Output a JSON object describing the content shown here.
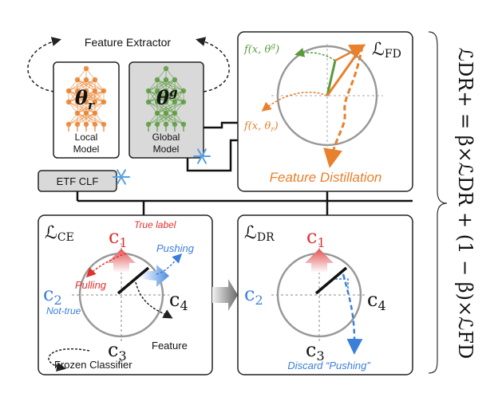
{
  "feature_extractor": {
    "title": "Feature  Extractor",
    "local_symbol": "θ",
    "local_sub": "r",
    "local_line1": "Local",
    "local_line2": "Model",
    "global_symbol": "θ",
    "global_sup": "g",
    "global_line1": "Global",
    "global_line2": "Model"
  },
  "etf_clf": "ETF CLF",
  "fd_panel": {
    "loss": "ℒ",
    "loss_sub": "FD",
    "f_global": "f(x, θ",
    "f_global_sup": "g",
    "f_local": "f(x, θ",
    "f_local_sub": "r",
    "caption": "Feature Distillation"
  },
  "ce_panel": {
    "loss": "ℒ",
    "loss_sub": "CE",
    "c1": "c",
    "c1_sub": "1",
    "c2": "c",
    "c2_sub": "2",
    "c3": "c",
    "c3_sub": "3",
    "c4": "c",
    "c4_sub": "4",
    "true_label": "True label",
    "pushing": "Pushing",
    "pulling": "Pulling",
    "not_true": "Not-true",
    "feature": "Feature",
    "frozen": "Frozen Classifier"
  },
  "dr_panel": {
    "loss": "ℒ",
    "loss_sub": "DR",
    "c1": "c",
    "c1_sub": "1",
    "c2": "c",
    "c2_sub": "2",
    "c3": "c",
    "c3_sub": "3",
    "c4": "c",
    "c4_sub": "4",
    "discard": "Discard “Pushing”"
  },
  "equation": {
    "text": "ℒDR+ = β×ℒDR + (1 − β)×ℒFD"
  },
  "colors": {
    "orange": "#e8802c",
    "green": "#5a9a3c",
    "red": "#e03030",
    "blue": "#3c7fd9",
    "grey_fill": "#d9d9d9",
    "panel_border": "#222222"
  }
}
